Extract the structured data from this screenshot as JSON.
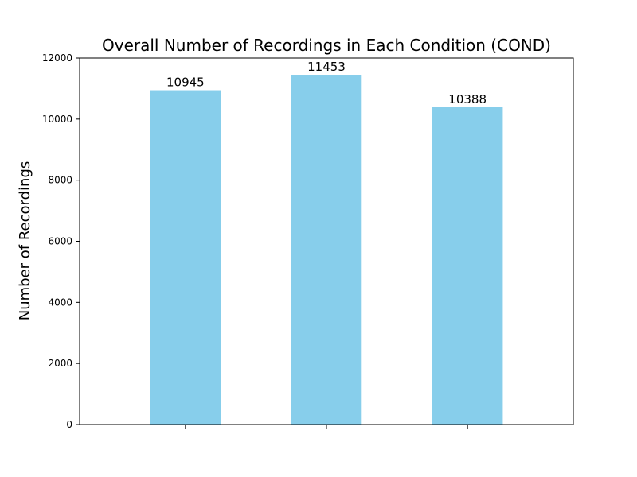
{
  "chart_data": {
    "type": "bar",
    "title": "Overall Number of Recordings in Each Condition (COND)",
    "xlabel": "",
    "ylabel": "Number of Recordings",
    "categories": [
      "",
      "",
      ""
    ],
    "values": [
      10945,
      11453,
      10388
    ],
    "value_labels": [
      "10945",
      "11453",
      "10388"
    ],
    "ylim": [
      0,
      12000
    ],
    "yticks": [
      0,
      2000,
      4000,
      6000,
      8000,
      10000,
      12000
    ],
    "ytick_labels": [
      "0",
      "2000",
      "4000",
      "6000",
      "8000",
      "10000",
      "12000"
    ],
    "bar_color": "#87ceeb",
    "grid": false,
    "legend": false
  }
}
